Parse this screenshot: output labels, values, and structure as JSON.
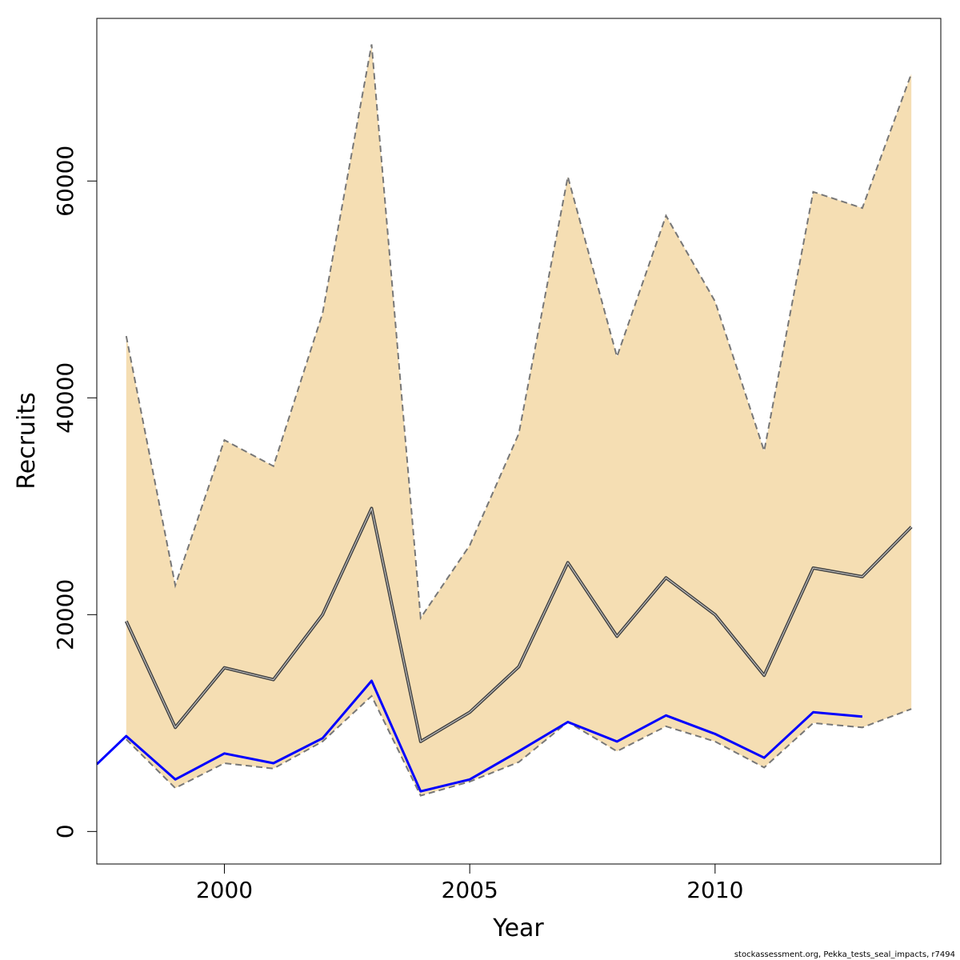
{
  "chart_data": {
    "type": "line",
    "xlabel": "Year",
    "ylabel": "Recruits",
    "xlim": [
      1997.4,
      2014.6
    ],
    "ylim": [
      -3000,
      75000
    ],
    "x_ticks": [
      2000,
      2005,
      2010
    ],
    "x_tick_labels": [
      "2000",
      "2005",
      "2010"
    ],
    "y_ticks": [
      0,
      20000,
      40000,
      60000
    ],
    "y_tick_labels": [
      "0",
      "20000",
      "40000",
      "60000"
    ],
    "colors": {
      "band": "#f5deb3",
      "median": "#444444",
      "bounds": "#777777",
      "observed": "#0000ff"
    },
    "band": {
      "x": [
        1998,
        1999,
        2000,
        2001,
        2002,
        2003,
        2004,
        2005,
        2006,
        2007,
        2008,
        2009,
        2010,
        2011,
        2012,
        2013,
        2014
      ],
      "lower": [
        8500,
        4000,
        6300,
        5800,
        8300,
        12500,
        3300,
        4600,
        6400,
        10100,
        7400,
        9700,
        8300,
        5900,
        10000,
        9600,
        11300
      ],
      "upper": [
        45700,
        22700,
        36100,
        33700,
        47800,
        72600,
        19700,
        26400,
        36700,
        60400,
        43800,
        56800,
        48900,
        35100,
        59000,
        57500,
        69900
      ]
    },
    "series": [
      {
        "x": [
          1998,
          1999,
          2000,
          2001,
          2002,
          2003,
          2004,
          2005,
          2006,
          2007,
          2008,
          2009,
          2010,
          2011,
          2012,
          2013,
          2014
        ],
        "values": [
          19400,
          9600,
          15100,
          14000,
          20000,
          29800,
          8300,
          11000,
          15200,
          24800,
          18000,
          23400,
          20000,
          14400,
          24300,
          23500,
          28100
        ]
      },
      {
        "x": [
          1997.4,
          1998,
          1999,
          2000,
          2001,
          2002,
          2003,
          2004,
          2005,
          2006,
          2007,
          2008,
          2009,
          2010,
          2011,
          2012,
          2013
        ],
        "values": [
          6200,
          8800,
          4800,
          7200,
          6300,
          8600,
          13900,
          3700,
          4800,
          7400,
          10100,
          8300,
          10700,
          9000,
          6800,
          11000,
          10600
        ]
      }
    ],
    "footnote": "stockassessment.org, Pekka_tests_seal_impacts, r7494"
  }
}
